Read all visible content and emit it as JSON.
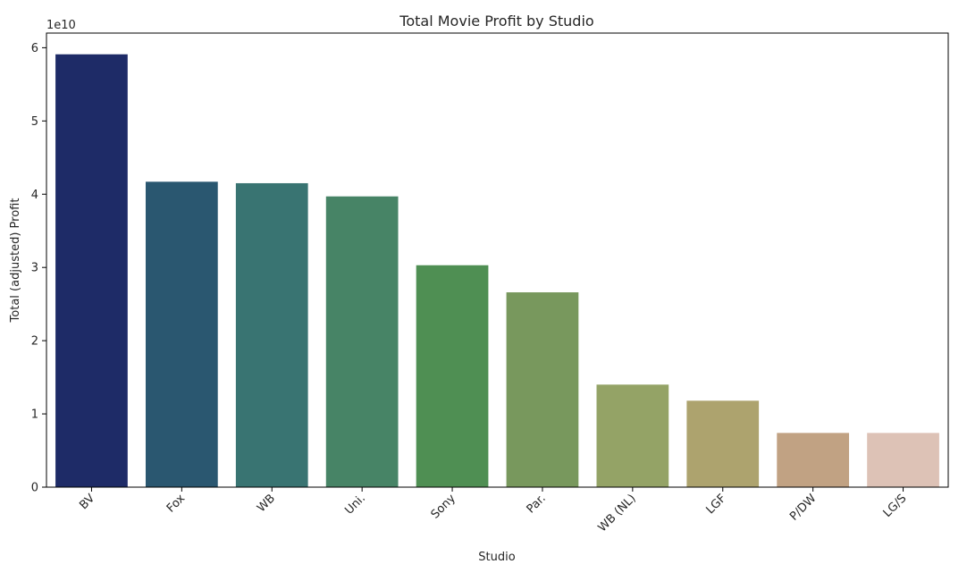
{
  "chart_data": {
    "type": "bar",
    "title": "Total Movie Profit by Studio",
    "xlabel": "Studio",
    "ylabel": "Total (adjusted) Profit",
    "offset_label": "1e10",
    "scale_multiplier": 10000000000,
    "categories": [
      "BV",
      "Fox",
      "WB",
      "Uni.",
      "Sony",
      "Par.",
      "WB (NL)",
      "LGF",
      "P/DW",
      "LG/S"
    ],
    "values": [
      59100000000,
      41700000000,
      41500000000,
      39700000000,
      30300000000,
      26600000000,
      14000000000,
      11800000000,
      7400000000,
      7400000000
    ],
    "colors": [
      "#1e2b67",
      "#2a5770",
      "#397472",
      "#478466",
      "#4f8f53",
      "#78985d",
      "#94a366",
      "#ada36e",
      "#c1a283",
      "#ddc2b6"
    ],
    "ylim": [
      0,
      62000000000
    ],
    "yticks": [
      0,
      10000000000,
      20000000000,
      30000000000,
      40000000000,
      50000000000,
      60000000000
    ],
    "ytick_labels": [
      "0",
      "1",
      "2",
      "3",
      "4",
      "5",
      "6"
    ],
    "grid": false,
    "legend": "none"
  }
}
